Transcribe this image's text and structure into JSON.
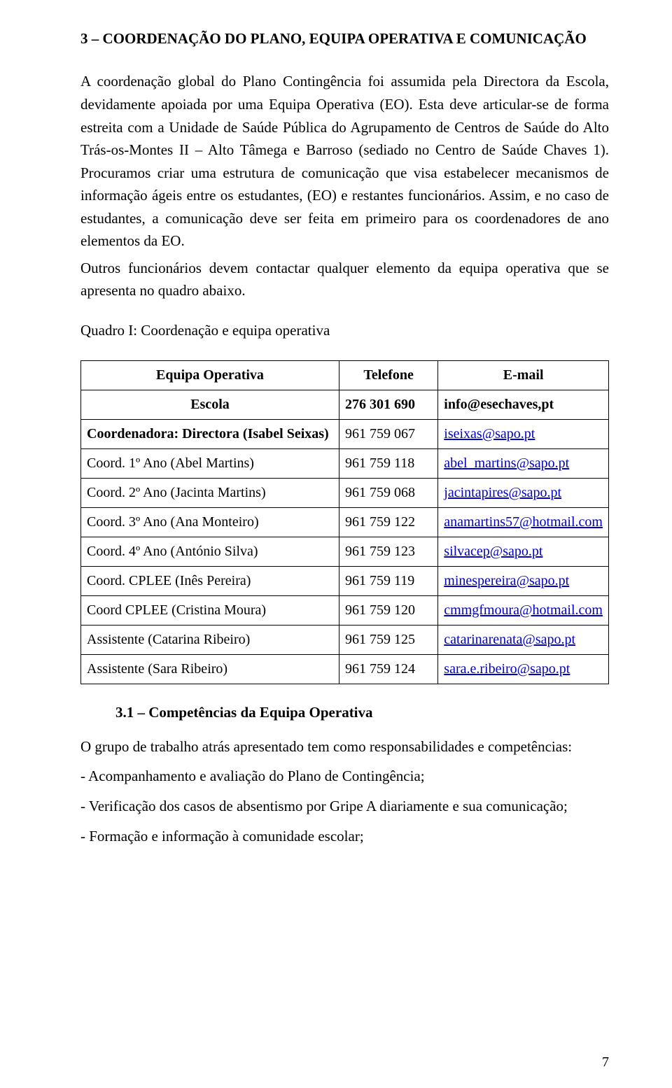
{
  "colors": {
    "text": "#000000",
    "background": "#ffffff",
    "link": "#0000c8",
    "table_border": "#000000"
  },
  "typography": {
    "font_family": "Times New Roman",
    "heading_fontsize_pt": 16,
    "body_fontsize_pt": 16,
    "table_fontsize_pt": 15
  },
  "heading": "3 – COORDENAÇÃO DO PLANO, EQUIPA OPERATIVA E COMUNICAÇÃO",
  "paragraphs": {
    "p1": "A coordenação global do Plano Contingência foi assumida pela Directora da Escola, devidamente apoiada por uma Equipa Operativa (EO). Esta deve articular-se de forma estreita com a Unidade de Saúde Pública do Agrupamento de Centros de Saúde do Alto Trás-os-Montes II – Alto Tâmega e Barroso (sediado no Centro de Saúde Chaves 1). Procuramos criar uma estrutura de comunicação que visa estabelecer mecanismos de informação ágeis entre os estudantes, (EO) e restantes funcionários. Assim, e no caso de estudantes, a comunicação deve ser feita em primeiro para os coordenadores de ano elementos da EO.",
    "p2": "Outros funcionários devem contactar qualquer elemento da equipa operativa que se apresenta no quadro abaixo.",
    "quadro_caption": "Quadro I: Coordenação e equipa operativa"
  },
  "table": {
    "columns": [
      "Equipa Operativa",
      "Telefone",
      "E-mail"
    ],
    "col_widths_pct": [
      50,
      19,
      31
    ],
    "rows": [
      {
        "role": "Escola",
        "role_style": "center-bold",
        "phone": "276 301 690",
        "phone_style": "left-bold",
        "email": "info@esechaves,pt",
        "email_style": "left-bold",
        "email_link": false
      },
      {
        "role": "Coordenadora:    Directora    (Isabel Seixas)",
        "role_style": "left-bold",
        "phone": "961 759 067",
        "email": "iseixas@sapo.pt",
        "email_link": true
      },
      {
        "role": "Coord. 1º Ano (Abel Martins)",
        "phone": "961 759 118",
        "email": "abel_martins@sapo.pt",
        "email_link": true
      },
      {
        "role": "Coord. 2º Ano (Jacinta Martins)",
        "phone": "961 759 068",
        "email": "jacintapires@sapo.pt",
        "email_link": true
      },
      {
        "role": "Coord. 3º Ano (Ana Monteiro)",
        "phone": "961 759 122",
        "email": "anamartins57@hotmail.com",
        "email_link": true
      },
      {
        "role": "Coord. 4º Ano (António Silva)",
        "phone": "961 759 123",
        "email": "silvacep@sapo.pt",
        "email_link": true
      },
      {
        "role": "Coord. CPLEE (Inês Pereira)",
        "phone": "961 759 119",
        "email": "minespereira@sapo.pt",
        "email_link": true
      },
      {
        "role": "Coord CPLEE (Cristina Moura)",
        "phone": "961 759 120",
        "email": "cmmgfmoura@hotmail.com",
        "email_link": true
      },
      {
        "role": "Assistente (Catarina Ribeiro)",
        "phone": "961 759 125",
        "email": "catarinarenata@sapo.pt",
        "email_link": true
      },
      {
        "role": "Assistente (Sara Ribeiro)",
        "phone": "961 759 124",
        "email": "sara.e.ribeiro@sapo.pt",
        "email_link": true
      }
    ]
  },
  "subsection": {
    "title": "3.1 – Competências da Equipa Operativa",
    "intro": "O grupo de trabalho atrás apresentado tem como responsabilidades e competências:",
    "items": [
      "- Acompanhamento e avaliação do Plano de Contingência;",
      "- Verificação dos casos de absentismo por Gripe A diariamente e sua comunicação;",
      "- Formação e informação à comunidade escolar;"
    ]
  },
  "page_number": "7"
}
